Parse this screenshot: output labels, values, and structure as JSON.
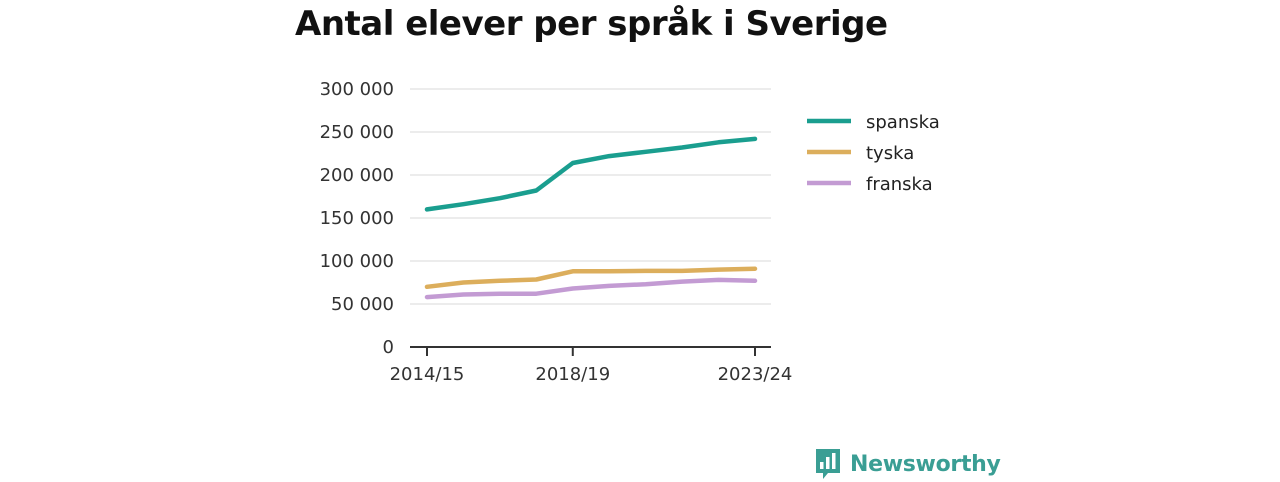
{
  "chart_data": {
    "type": "line",
    "title": "Antal elever per språk i Sverige",
    "xlabel": "",
    "ylabel": "",
    "x": [
      "2014/15",
      "2015/16",
      "2016/17",
      "2017/18",
      "2018/19",
      "2019/20",
      "2020/21",
      "2021/22",
      "2022/23",
      "2023/24"
    ],
    "x_tick_labels": [
      "2014/15",
      "2018/19",
      "2023/24"
    ],
    "y_tick_values": [
      0,
      50000,
      100000,
      150000,
      200000,
      250000,
      300000
    ],
    "y_tick_labels": [
      "0",
      "50 000",
      "100 000",
      "150 000",
      "200 000",
      "250 000",
      "300 000"
    ],
    "ylim": [
      0,
      300000
    ],
    "grid": true,
    "legend_position": "right",
    "series": [
      {
        "name": "spanska",
        "color": "#1a9e8f",
        "values": [
          160000,
          166000,
          173000,
          182000,
          214000,
          222000,
          227000,
          232000,
          238000,
          242000
        ]
      },
      {
        "name": "tyska",
        "color": "#dcae5c",
        "values": [
          70000,
          75000,
          77000,
          78500,
          88000,
          88000,
          88500,
          88500,
          90000,
          91000
        ]
      },
      {
        "name": "franska",
        "color": "#c39bd3",
        "values": [
          58000,
          61000,
          62000,
          62000,
          68000,
          71000,
          73000,
          76000,
          78000,
          77000
        ]
      }
    ]
  },
  "brand": {
    "name": "Newsworthy",
    "logo_icon": "bar-chart-speech-bubble-icon",
    "color": "#3a9e94"
  }
}
